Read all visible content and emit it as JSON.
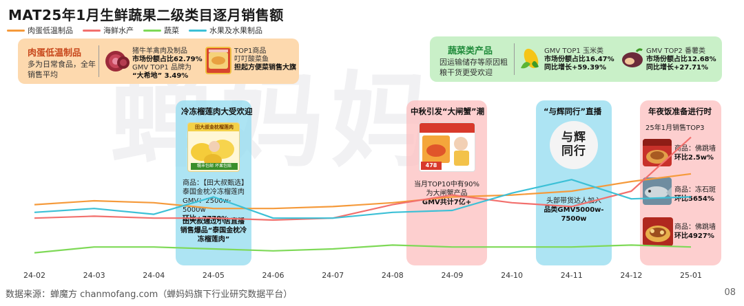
{
  "title": "MAT25年1月生鲜蔬果二级类目逐月销售额",
  "legend": [
    {
      "name": "肉蛋低温制品",
      "color": "#f59a3b"
    },
    {
      "name": "海鲜水产",
      "color": "#f2706d"
    },
    {
      "name": "蔬菜",
      "color": "#7ed957"
    },
    {
      "name": "水果及水果制品",
      "color": "#3cc0d6"
    }
  ],
  "watermark": "蝉妈妈",
  "card_meat": {
    "heading": "肉蛋低温制品",
    "sub": "多为日常食品，全年销售平均",
    "item1_l1": "猪牛羊禽肉及制品",
    "item1_l2": "市场份额占比62.79%",
    "item1_l3": "GMV TOP1 品牌为",
    "item1_l4": "“大希地” 3.49%",
    "item2_l1": "TOP1商品",
    "item2_l2": "叮叮酸菜鱼",
    "item2_l3": "担起方便菜销售大旗"
  },
  "card_veg": {
    "heading": "蔬菜类产品",
    "sub": "因运输储存等原因粗粮干货更受欢迎",
    "item1_l1": "GMV TOP1 玉米类",
    "item1_l2": "市场份额占比16.47%",
    "item1_l3": "同比增长+59.39%",
    "item2_l1": "GMV TOP2 番薯类",
    "item2_l2": "市场份额占比12.68%",
    "item2_l3": "同比增长+27.71%"
  },
  "panel_durian": {
    "heading": "冷冻榴莲肉大受欢迎",
    "img_text": "田大叔金枕榴莲肉",
    "img_badge": "糯丰包邮 坏果包赔",
    "t1": "商品：【田大叔甄选】",
    "t2": "泰国金枕冷冻榴莲肉",
    "t3": "GMV：2500w-5000w",
    "t4": "环比+7778%",
    "t5": "田大叔通过小店直播销售爆品“泰国金枕冷冻榴莲肉”"
  },
  "panel_crab": {
    "heading": "中秋引发“大闸蟹”潮",
    "img_price": "478",
    "t1": "当月TOP10中有90%",
    "t2": "为大闸蟹产品",
    "t3": "GMV共计7亿+"
  },
  "panel_hui": {
    "heading": "“与辉同行”直播",
    "img_text": "与辉同行",
    "t1": "头部带货达人加入",
    "t2": "品类GMV5000w-",
    "t3": "7500w"
  },
  "panel_ny": {
    "heading": "年夜饭准备进行时",
    "sub": "25年1月销售TOP3",
    "i1_l1": "商品：佛跳墙",
    "i1_l2": "环比2.5w%",
    "i2_l1": "商品：冻石斑",
    "i2_l2": "环比5654%",
    "i3_l1": "商品：佛跳墙",
    "i3_l2": "环比4927%"
  },
  "chart_data": {
    "type": "line",
    "x": [
      "24-02",
      "24-03",
      "24-04",
      "24-05",
      "24-06",
      "24-07",
      "24-08",
      "24-09",
      "24-10",
      "24-11",
      "24-12",
      "25-01"
    ],
    "series": [
      {
        "name": "肉蛋低温制品",
        "color": "#f59a3b",
        "values": [
          33,
          35,
          34,
          31,
          31,
          32,
          34,
          37,
          38,
          40,
          45,
          49
        ]
      },
      {
        "name": "海鲜水产",
        "color": "#f2706d",
        "values": [
          26,
          27,
          26,
          26,
          25,
          26,
          33,
          38,
          34,
          32,
          40,
          68
        ]
      },
      {
        "name": "蔬菜",
        "color": "#7ed957",
        "values": [
          8,
          11,
          11,
          10,
          9,
          10,
          12,
          11,
          11,
          11,
          12,
          11
        ]
      },
      {
        "name": "水果及水果制品",
        "color": "#3cc0d6",
        "values": [
          29,
          31,
          28,
          37,
          26,
          26,
          29,
          30,
          39,
          46,
          36,
          37
        ]
      }
    ],
    "ylim": [
      0,
      100
    ]
  },
  "footer": "数据来源：蝉魔方 chanmofang.com（蝉妈妈旗下行业研究数据平台）",
  "page_number": "08"
}
